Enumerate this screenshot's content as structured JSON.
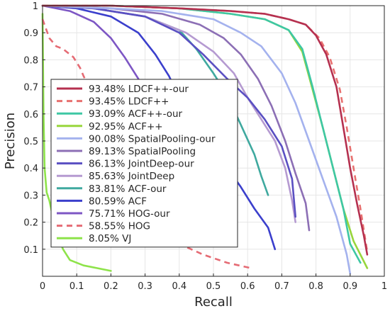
{
  "chart_data": {
    "type": "line",
    "xlabel": "Recall",
    "ylabel": "Precision",
    "xlim": [
      0,
      1
    ],
    "ylim": [
      0,
      1
    ],
    "grid": true,
    "legend_position": "bottom-left",
    "x_ticks": [
      "0",
      "0.1",
      "0.2",
      "0.3",
      "0.4",
      "0.5",
      "0.6",
      "0.7",
      "0.8",
      "0.9",
      "1"
    ],
    "y_ticks": [
      "0.1",
      "0.2",
      "0.3",
      "0.4",
      "0.5",
      "0.6",
      "0.7",
      "0.8",
      "0.9",
      "1"
    ],
    "series": [
      {
        "name": "93.48% LDCF++-our",
        "color": "#b5304f",
        "dash": false,
        "points": [
          [
            0,
            1
          ],
          [
            0.2,
            1
          ],
          [
            0.4,
            0.99
          ],
          [
            0.55,
            0.98
          ],
          [
            0.65,
            0.97
          ],
          [
            0.72,
            0.95
          ],
          [
            0.77,
            0.93
          ],
          [
            0.8,
            0.89
          ],
          [
            0.83,
            0.82
          ],
          [
            0.86,
            0.7
          ],
          [
            0.88,
            0.55
          ],
          [
            0.9,
            0.4
          ],
          [
            0.92,
            0.27
          ],
          [
            0.94,
            0.15
          ],
          [
            0.95,
            0.08
          ]
        ]
      },
      {
        "name": "93.45% LDCF++",
        "color": "#e8706f",
        "dash": true,
        "points": [
          [
            0,
            1
          ],
          [
            0.2,
            1
          ],
          [
            0.4,
            0.99
          ],
          [
            0.55,
            0.98
          ],
          [
            0.65,
            0.97
          ],
          [
            0.72,
            0.95
          ],
          [
            0.77,
            0.93
          ],
          [
            0.81,
            0.88
          ],
          [
            0.84,
            0.81
          ],
          [
            0.87,
            0.69
          ],
          [
            0.89,
            0.55
          ],
          [
            0.91,
            0.4
          ],
          [
            0.93,
            0.25
          ],
          [
            0.95,
            0.09
          ]
        ]
      },
      {
        "name": "93.09% ACF++-our",
        "color": "#3ec7a4",
        "dash": false,
        "points": [
          [
            0,
            1
          ],
          [
            0.2,
            1
          ],
          [
            0.4,
            0.99
          ],
          [
            0.55,
            0.97
          ],
          [
            0.65,
            0.95
          ],
          [
            0.72,
            0.91
          ],
          [
            0.76,
            0.84
          ],
          [
            0.79,
            0.7
          ],
          [
            0.82,
            0.55
          ],
          [
            0.85,
            0.4
          ],
          [
            0.88,
            0.25
          ],
          [
            0.9,
            0.12
          ],
          [
            0.93,
            0.05
          ]
        ]
      },
      {
        "name": "92.95% ACF++",
        "color": "#98d63c",
        "dash": false,
        "points": [
          [
            0,
            1
          ],
          [
            0.2,
            1
          ],
          [
            0.4,
            0.99
          ],
          [
            0.55,
            0.97
          ],
          [
            0.65,
            0.95
          ],
          [
            0.72,
            0.91
          ],
          [
            0.76,
            0.83
          ],
          [
            0.79,
            0.69
          ],
          [
            0.82,
            0.55
          ],
          [
            0.85,
            0.4
          ],
          [
            0.88,
            0.25
          ],
          [
            0.91,
            0.13
          ],
          [
            0.95,
            0.03
          ]
        ]
      },
      {
        "name": "90.08% SpatialPooling-our",
        "color": "#a4b2ee",
        "dash": false,
        "points": [
          [
            0,
            1
          ],
          [
            0.2,
            0.99
          ],
          [
            0.35,
            0.98
          ],
          [
            0.5,
            0.95
          ],
          [
            0.58,
            0.9
          ],
          [
            0.64,
            0.85
          ],
          [
            0.7,
            0.75
          ],
          [
            0.74,
            0.64
          ],
          [
            0.78,
            0.5
          ],
          [
            0.82,
            0.36
          ],
          [
            0.86,
            0.22
          ],
          [
            0.89,
            0.08
          ],
          [
            0.9,
            0.01
          ]
        ]
      },
      {
        "name": "89.13% SpatialPooling",
        "color": "#8c6fb5",
        "dash": false,
        "points": [
          [
            0,
            1
          ],
          [
            0.2,
            0.99
          ],
          [
            0.35,
            0.97
          ],
          [
            0.46,
            0.93
          ],
          [
            0.53,
            0.88
          ],
          [
            0.58,
            0.82
          ],
          [
            0.63,
            0.73
          ],
          [
            0.67,
            0.63
          ],
          [
            0.71,
            0.5
          ],
          [
            0.74,
            0.38
          ],
          [
            0.77,
            0.27
          ],
          [
            0.78,
            0.17
          ]
        ]
      },
      {
        "name": "86.13% JointDeep-our",
        "color": "#5a4fc2",
        "dash": false,
        "points": [
          [
            0,
            1
          ],
          [
            0.15,
            0.99
          ],
          [
            0.3,
            0.96
          ],
          [
            0.4,
            0.9
          ],
          [
            0.47,
            0.82
          ],
          [
            0.54,
            0.73
          ],
          [
            0.6,
            0.66
          ],
          [
            0.65,
            0.58
          ],
          [
            0.7,
            0.48
          ],
          [
            0.73,
            0.36
          ],
          [
            0.74,
            0.22
          ]
        ]
      },
      {
        "name": "85.63% JointDeep",
        "color": "#b59ad1",
        "dash": false,
        "points": [
          [
            0,
            1
          ],
          [
            0.15,
            0.99
          ],
          [
            0.3,
            0.96
          ],
          [
            0.42,
            0.9
          ],
          [
            0.5,
            0.83
          ],
          [
            0.56,
            0.75
          ],
          [
            0.6,
            0.66
          ],
          [
            0.64,
            0.58
          ],
          [
            0.68,
            0.5
          ],
          [
            0.71,
            0.4
          ],
          [
            0.73,
            0.28
          ],
          [
            0.74,
            0.2
          ]
        ]
      },
      {
        "name": "83.81% ACF-our",
        "color": "#3fa99f",
        "dash": false,
        "points": [
          [
            0,
            1
          ],
          [
            0.15,
            0.99
          ],
          [
            0.3,
            0.96
          ],
          [
            0.4,
            0.91
          ],
          [
            0.45,
            0.84
          ],
          [
            0.5,
            0.75
          ],
          [
            0.54,
            0.67
          ],
          [
            0.58,
            0.56
          ],
          [
            0.62,
            0.45
          ],
          [
            0.64,
            0.37
          ],
          [
            0.66,
            0.3
          ]
        ]
      },
      {
        "name": "80.59% ACF",
        "color": "#3b3fcc",
        "dash": false,
        "points": [
          [
            0,
            1
          ],
          [
            0.1,
            0.99
          ],
          [
            0.2,
            0.96
          ],
          [
            0.28,
            0.9
          ],
          [
            0.33,
            0.82
          ],
          [
            0.37,
            0.74
          ],
          [
            0.4,
            0.66
          ],
          [
            0.44,
            0.58
          ],
          [
            0.48,
            0.5
          ],
          [
            0.53,
            0.42
          ],
          [
            0.58,
            0.33
          ],
          [
            0.62,
            0.25
          ],
          [
            0.66,
            0.18
          ],
          [
            0.68,
            0.1
          ]
        ]
      },
      {
        "name": "75.71% HOG-our",
        "color": "#7d56c4",
        "dash": false,
        "points": [
          [
            0,
            1
          ],
          [
            0.08,
            0.98
          ],
          [
            0.15,
            0.94
          ],
          [
            0.2,
            0.88
          ],
          [
            0.24,
            0.81
          ],
          [
            0.28,
            0.73
          ],
          [
            0.32,
            0.62
          ],
          [
            0.36,
            0.52
          ],
          [
            0.41,
            0.43
          ],
          [
            0.45,
            0.36
          ],
          [
            0.49,
            0.28
          ],
          [
            0.52,
            0.24
          ],
          [
            0.54,
            0.18
          ]
        ]
      },
      {
        "name": "58.55% HOG",
        "color": "#e56b74",
        "dash": true,
        "points": [
          [
            0,
            0.95
          ],
          [
            0.02,
            0.88
          ],
          [
            0.04,
            0.85
          ],
          [
            0.06,
            0.84
          ],
          [
            0.09,
            0.81
          ],
          [
            0.11,
            0.77
          ],
          [
            0.12,
            0.74
          ],
          [
            0.14,
            0.69
          ],
          [
            0.18,
            0.55
          ],
          [
            0.22,
            0.42
          ],
          [
            0.27,
            0.3
          ],
          [
            0.33,
            0.2
          ],
          [
            0.4,
            0.12
          ],
          [
            0.47,
            0.08
          ],
          [
            0.54,
            0.05
          ],
          [
            0.61,
            0.03
          ]
        ]
      },
      {
        "name": "8.05% VJ",
        "color": "#8ee34a",
        "dash": false,
        "points": [
          [
            0,
            0.97
          ],
          [
            0.003,
            0.6
          ],
          [
            0.006,
            0.4
          ],
          [
            0.01,
            0.34
          ],
          [
            0.012,
            0.31
          ],
          [
            0.02,
            0.28
          ],
          [
            0.03,
            0.22
          ],
          [
            0.04,
            0.16
          ],
          [
            0.06,
            0.1
          ],
          [
            0.08,
            0.06
          ],
          [
            0.12,
            0.04
          ],
          [
            0.16,
            0.03
          ],
          [
            0.2,
            0.02
          ]
        ]
      }
    ]
  }
}
